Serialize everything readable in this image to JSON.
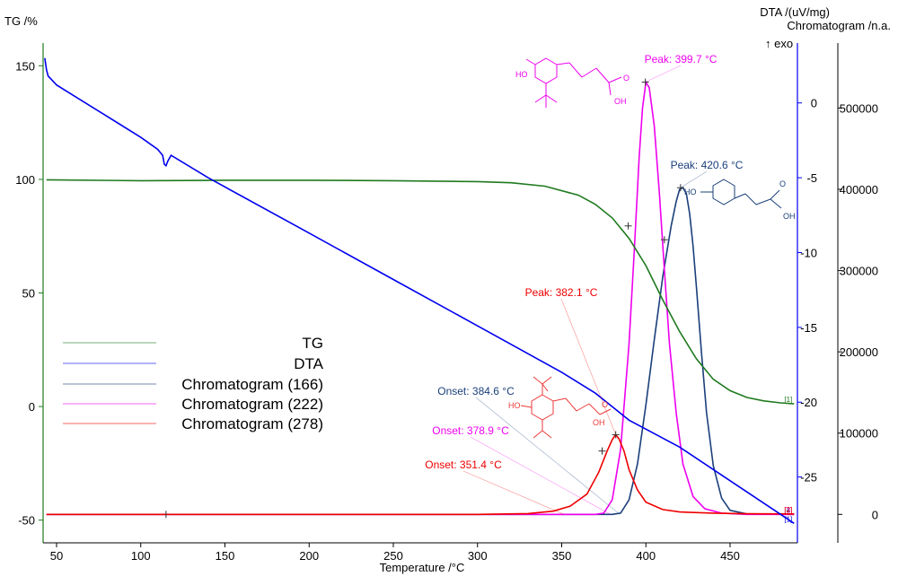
{
  "chart_data": {
    "type": "line",
    "xlabel": "Temperature /°C",
    "xlim": [
      42,
      490
    ],
    "x_ticks": [
      50,
      100,
      150,
      200,
      250,
      300,
      350,
      400,
      450
    ],
    "y_left": {
      "label": "TG /%",
      "lim": [
        -60,
        160
      ],
      "ticks": [
        150,
        100,
        50,
        0,
        -50
      ]
    },
    "y_dta": {
      "label": "DTA /(uV/mg)",
      "exo": "↑ exo",
      "lim": [
        -29.4,
        4.0
      ],
      "ticks": [
        0,
        -5,
        -10,
        -15,
        -20,
        -25
      ]
    },
    "y_chrom": {
      "label": "Chromatogram /n.a.",
      "lim": [
        -35000,
        580000
      ],
      "ticks": [
        500000,
        400000,
        300000,
        200000,
        100000,
        0
      ],
      "tick_labels": [
        "500000",
        "400000",
        "300000",
        "200000",
        "100000",
        "0"
      ]
    },
    "series": [
      {
        "name": "TG",
        "axis": "tg",
        "color": "#1f7a1f",
        "end_tag": "[1]",
        "points": [
          [
            44,
            99.8
          ],
          [
            100,
            99.4
          ],
          [
            150,
            99.6
          ],
          [
            200,
            99.6
          ],
          [
            250,
            99.4
          ],
          [
            300,
            99.0
          ],
          [
            320,
            98.5
          ],
          [
            340,
            97.0
          ],
          [
            360,
            93.0
          ],
          [
            370,
            89.0
          ],
          [
            380,
            83.0
          ],
          [
            390,
            74.0
          ],
          [
            400,
            62.0
          ],
          [
            410,
            47.0
          ],
          [
            420,
            33.0
          ],
          [
            430,
            21.0
          ],
          [
            440,
            12.0
          ],
          [
            450,
            7.0
          ],
          [
            460,
            4.0
          ],
          [
            470,
            2.5
          ],
          [
            480,
            1.6
          ],
          [
            488,
            1.2
          ]
        ]
      },
      {
        "name": "DTA",
        "axis": "dta",
        "color": "#0000ee",
        "end_tag": "[1]",
        "points": [
          [
            43,
            3.0
          ],
          [
            44,
            2.2
          ],
          [
            45,
            1.8
          ],
          [
            50,
            1.2
          ],
          [
            60,
            0.5
          ],
          [
            80,
            -0.9
          ],
          [
            100,
            -2.3
          ],
          [
            110,
            -3.1
          ],
          [
            113,
            -3.5
          ],
          [
            114,
            -4.1
          ],
          [
            115,
            -4.2
          ],
          [
            116,
            -3.9
          ],
          [
            118,
            -3.5
          ],
          [
            140,
            -5.0
          ],
          [
            200,
            -8.7
          ],
          [
            250,
            -11.8
          ],
          [
            300,
            -14.9
          ],
          [
            350,
            -18.0
          ],
          [
            370,
            -19.4
          ],
          [
            380,
            -20.3
          ],
          [
            390,
            -21.2
          ],
          [
            400,
            -21.8
          ],
          [
            420,
            -23.0
          ],
          [
            440,
            -24.5
          ],
          [
            460,
            -26.0
          ],
          [
            480,
            -27.5
          ],
          [
            488,
            -28.1
          ]
        ]
      },
      {
        "name": "Chromatogram (166)",
        "axis": "chrom",
        "color": "#1a3f7a",
        "end_tag": "[4]",
        "points": [
          [
            44,
            0
          ],
          [
            380,
            0
          ],
          [
            385,
            1500
          ],
          [
            390,
            18000
          ],
          [
            395,
            62000
          ],
          [
            400,
            135000
          ],
          [
            405,
            215000
          ],
          [
            410,
            292000
          ],
          [
            415,
            355000
          ],
          [
            418,
            385000
          ],
          [
            420,
            400000
          ],
          [
            422,
            402000
          ],
          [
            424,
            395000
          ],
          [
            426,
            370000
          ],
          [
            428,
            330000
          ],
          [
            430,
            280000
          ],
          [
            433,
            200000
          ],
          [
            436,
            125000
          ],
          [
            440,
            60000
          ],
          [
            445,
            20000
          ],
          [
            450,
            5000
          ],
          [
            460,
            500
          ],
          [
            488,
            0
          ]
        ]
      },
      {
        "name": "Chromatogram (222)",
        "axis": "chrom",
        "color": "#ee00ee",
        "end_tag": "[3]",
        "points": [
          [
            44,
            0
          ],
          [
            370,
            0
          ],
          [
            375,
            1500
          ],
          [
            380,
            18000
          ],
          [
            385,
            80000
          ],
          [
            390,
            210000
          ],
          [
            393,
            320000
          ],
          [
            396,
            440000
          ],
          [
            398,
            500000
          ],
          [
            400,
            532000
          ],
          [
            402,
            525000
          ],
          [
            405,
            478000
          ],
          [
            408,
            395000
          ],
          [
            411,
            300000
          ],
          [
            414,
            210000
          ],
          [
            418,
            125000
          ],
          [
            422,
            62000
          ],
          [
            428,
            22000
          ],
          [
            435,
            7000
          ],
          [
            445,
            1500
          ],
          [
            460,
            0
          ],
          [
            488,
            0
          ]
        ]
      },
      {
        "name": "Chromatogram (278)",
        "axis": "chrom",
        "color": "#ee0000",
        "end_tag": "[2]",
        "points": [
          [
            44,
            0
          ],
          [
            300,
            0
          ],
          [
            330,
            1000
          ],
          [
            345,
            4000
          ],
          [
            355,
            10000
          ],
          [
            365,
            25000
          ],
          [
            372,
            52000
          ],
          [
            377,
            78000
          ],
          [
            380,
            92000
          ],
          [
            382,
            98000
          ],
          [
            384,
            93000
          ],
          [
            387,
            78000
          ],
          [
            390,
            55000
          ],
          [
            395,
            30000
          ],
          [
            400,
            15000
          ],
          [
            410,
            6000
          ],
          [
            420,
            3000
          ],
          [
            440,
            1500
          ],
          [
            460,
            800
          ],
          [
            488,
            500
          ]
        ]
      }
    ],
    "legend": [
      {
        "label": "TG",
        "color": "#1f7a1f"
      },
      {
        "label": "DTA",
        "color": "#0000ee"
      },
      {
        "label": "Chromatogram (166)",
        "color": "#1a3f7a"
      },
      {
        "label": "Chromatogram (222)",
        "color": "#ee00ee"
      },
      {
        "label": "Chromatogram (278)",
        "color": "#ee0000"
      }
    ],
    "legend_position": "center-left",
    "annotations": [
      {
        "label": "Peak: 399.7 °C",
        "color": "#ee00ee",
        "x": 399.7,
        "value": 532000,
        "axis": "chrom"
      },
      {
        "label": "Peak: 420.6 °C",
        "color": "#1a3f7a",
        "x": 420.6,
        "value": 402000,
        "axis": "chrom"
      },
      {
        "label": "Peak: 382.1 °C",
        "color": "#ee0000",
        "x": 382.1,
        "value": 98000,
        "axis": "chrom"
      },
      {
        "label": "Onset: 384.6 °C",
        "color": "#1a3f7a",
        "x": 384.6,
        "axis": "chrom"
      },
      {
        "label": "Onset: 378.9 °C",
        "color": "#ee00ee",
        "x": 378.9,
        "axis": "chrom"
      },
      {
        "label": "Onset: 351.4 °C",
        "color": "#ee0000",
        "x": 351.4,
        "axis": "chrom"
      }
    ],
    "molecule_labels": {
      "hydroxyl": "HO",
      "acid": "OH",
      "carbonyl": "O"
    }
  }
}
